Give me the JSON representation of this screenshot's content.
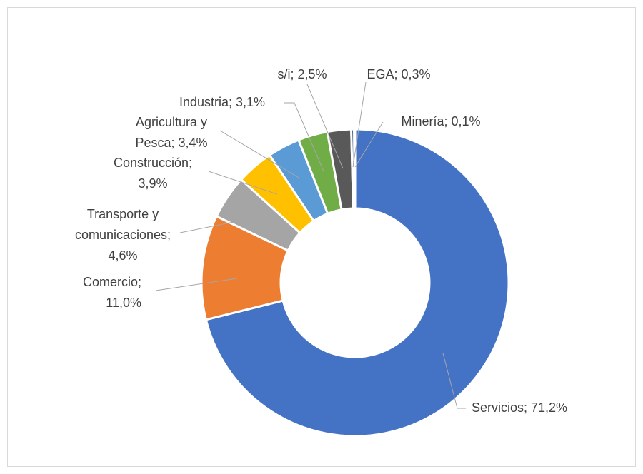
{
  "chart_data": {
    "type": "donut",
    "values": [
      71.2,
      11.0,
      4.6,
      3.9,
      3.4,
      3.1,
      2.5,
      0.3,
      0.1
    ],
    "value_labels": [
      "Servicios; 71,2%",
      "Comercio;\n11,0%",
      "Transporte y\ncomunicaciones;\n4,6%",
      "Construcción;\n3,9%",
      "Agricultura y\nPesca; 3,4%",
      "Industria; 3,1%",
      "s/i; 2,5%",
      "EGA; 0,3%",
      "Minería; 0,1%"
    ],
    "colors": [
      "#4472c4",
      "#ed7d31",
      "#a5a5a5",
      "#ffc000",
      "#5b9bd5",
      "#70ad47",
      "#595959",
      "#264478",
      "#9e480e"
    ]
  }
}
